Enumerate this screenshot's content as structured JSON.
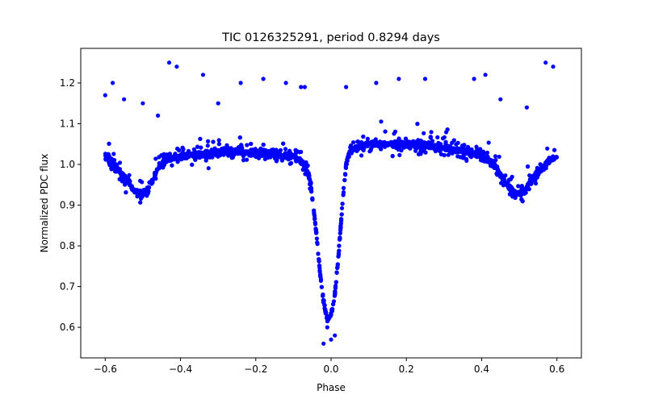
{
  "chart_data": {
    "type": "scatter",
    "title": "TIC 0126325291, period 0.8294 days",
    "xlabel": "Phase",
    "ylabel": "Normalized PDC flux",
    "xlim": [
      -0.665,
      0.665
    ],
    "ylim": [
      0.525,
      1.285
    ],
    "xticks": [
      -0.6,
      -0.4,
      -0.2,
      0.0,
      0.2,
      0.4,
      0.6
    ],
    "xtick_labels": [
      "−0.6",
      "−0.4",
      "−0.2",
      "0.0",
      "0.2",
      "0.4",
      "0.6"
    ],
    "yticks": [
      0.6,
      0.7,
      0.8,
      0.9,
      1.0,
      1.1,
      1.2
    ],
    "ytick_labels": [
      "0.6",
      "0.7",
      "0.8",
      "0.9",
      "1.0",
      "1.1",
      "1.2"
    ],
    "grid": false,
    "marker_color": "#0000ff",
    "series": [
      {
        "x": [
          -0.6,
          -0.58,
          -0.56,
          -0.54,
          -0.52,
          -0.5,
          -0.48,
          -0.46,
          -0.44,
          -0.42,
          -0.4,
          -0.35,
          -0.3,
          -0.25,
          -0.2,
          -0.15,
          -0.1,
          -0.08,
          -0.06,
          -0.05,
          -0.04,
          -0.03,
          -0.02,
          -0.01,
          0.0,
          0.01,
          0.02,
          0.03,
          0.04,
          0.05,
          0.06,
          0.08,
          0.1,
          0.15,
          0.2,
          0.25,
          0.3,
          0.35,
          0.4,
          0.42,
          0.44,
          0.46,
          0.48,
          0.5,
          0.52,
          0.54,
          0.56,
          0.58,
          0.6
        ],
        "y": [
          1.02,
          1.0,
          0.98,
          0.96,
          0.93,
          0.925,
          0.95,
          0.99,
          1.01,
          1.015,
          1.02,
          1.025,
          1.03,
          1.03,
          1.03,
          1.025,
          1.02,
          1.01,
          0.98,
          0.92,
          0.84,
          0.74,
          0.66,
          0.62,
          0.63,
          0.68,
          0.78,
          0.9,
          1.0,
          1.035,
          1.04,
          1.045,
          1.05,
          1.05,
          1.05,
          1.045,
          1.04,
          1.035,
          1.02,
          1.01,
          0.99,
          0.96,
          0.935,
          0.925,
          0.94,
          0.97,
          0.99,
          1.01,
          1.02
        ],
        "outliers": [
          [
            -0.43,
            1.25
          ],
          [
            -0.41,
            1.24
          ],
          [
            -0.34,
            1.22
          ],
          [
            -0.24,
            1.2
          ],
          [
            -0.18,
            1.21
          ],
          [
            -0.12,
            1.2
          ],
          [
            -0.58,
            1.2
          ],
          [
            -0.6,
            1.17
          ],
          [
            -0.55,
            1.16
          ],
          [
            -0.5,
            1.15
          ],
          [
            -0.46,
            1.12
          ],
          [
            -0.3,
            1.15
          ],
          [
            -0.08,
            1.19
          ],
          [
            -0.07,
            1.19
          ],
          [
            0.04,
            1.19
          ],
          [
            0.12,
            1.2
          ],
          [
            0.18,
            1.21
          ],
          [
            0.25,
            1.21
          ],
          [
            0.38,
            1.21
          ],
          [
            0.41,
            1.22
          ],
          [
            0.57,
            1.25
          ],
          [
            0.59,
            1.24
          ],
          [
            0.52,
            1.14
          ],
          [
            0.45,
            1.16
          ],
          [
            -0.02,
            0.56
          ],
          [
            0.0,
            0.57
          ],
          [
            0.01,
            0.58
          ],
          [
            -0.01,
            0.6
          ]
        ]
      }
    ]
  }
}
